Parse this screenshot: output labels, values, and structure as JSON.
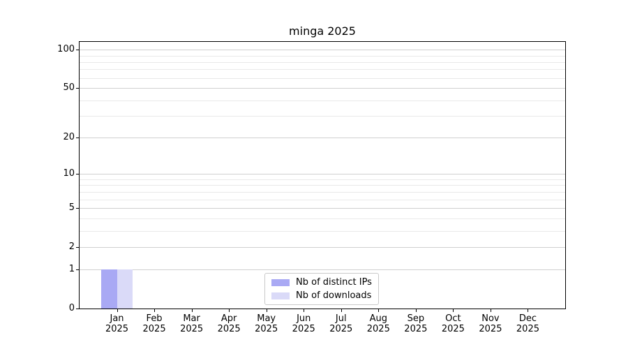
{
  "chart_data": {
    "type": "bar",
    "title": "minga 2025",
    "categories": [
      "Jan",
      "Feb",
      "Mar",
      "Apr",
      "May",
      "Jun",
      "Jul",
      "Aug",
      "Sep",
      "Oct",
      "Nov",
      "Dec"
    ],
    "category_sublabel": "2025",
    "series": [
      {
        "name": "Nb of distinct IPs",
        "color": "#a9a9f4",
        "values": [
          1,
          0,
          0,
          0,
          0,
          0,
          0,
          0,
          0,
          0,
          0,
          0
        ]
      },
      {
        "name": "Nb of downloads",
        "color": "#dadaf8",
        "values": [
          1,
          0,
          0,
          0,
          0,
          0,
          0,
          0,
          0,
          0,
          0,
          0
        ]
      }
    ],
    "y_axis": {
      "scale": "log1p",
      "min": 0,
      "max": 115,
      "major_ticks": [
        0,
        1,
        2,
        5,
        10,
        20,
        50,
        100
      ],
      "minor_ticks": [
        3,
        4,
        6,
        7,
        8,
        9,
        30,
        40,
        60,
        70,
        80,
        90
      ]
    },
    "x_axis": {
      "min": -1,
      "max": 12,
      "bar_width_fraction": 0.42
    },
    "grid": true,
    "legend_position": "lower center"
  },
  "colors": {
    "grid_major": "#d0d0d0",
    "grid_minor": "#e9e9e9",
    "spine": "#000000",
    "background": "#ffffff",
    "text": "#000000",
    "legend_border": "#c9c9c9"
  }
}
